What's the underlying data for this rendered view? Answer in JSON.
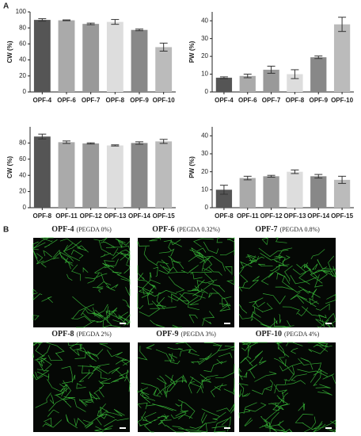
{
  "panels": {
    "a": "A",
    "b": "B"
  },
  "chart_data": [
    {
      "type": "bar",
      "ylabel": "CW (%)",
      "categories": [
        "OPF-4",
        "OPF-6",
        "OPF-7",
        "OPF-8",
        "OPF-9",
        "OPF-10"
      ],
      "values": [
        90,
        89.5,
        85,
        87.5,
        77.5,
        56
      ],
      "errors": [
        1.5,
        0.5,
        1,
        3,
        1,
        5
      ],
      "colors": [
        "#555555",
        "#aaaaaa",
        "#999999",
        "#dddddd",
        "#888888",
        "#bbbbbb"
      ],
      "ylim": [
        0,
        100
      ],
      "yticks": [
        0,
        20,
        40,
        60,
        80,
        100
      ]
    },
    {
      "type": "bar",
      "ylabel": "PW (%)",
      "categories": [
        "OPF-4",
        "OPF-6",
        "OPF-7",
        "OPF-8",
        "OPF-9",
        "OPF-10"
      ],
      "values": [
        8,
        9,
        12.5,
        10,
        19.5,
        38
      ],
      "errors": [
        0.5,
        1,
        2,
        2.5,
        0.7,
        4
      ],
      "colors": [
        "#555555",
        "#aaaaaa",
        "#999999",
        "#dddddd",
        "#888888",
        "#bbbbbb"
      ],
      "ylim": [
        0,
        45
      ],
      "yticks": [
        0,
        10,
        20,
        30,
        40
      ]
    },
    {
      "type": "bar",
      "ylabel": "CW (%)",
      "categories": [
        "OPF-8",
        "OPF-11",
        "OPF-12",
        "OPF-13",
        "OPF-14",
        "OPF-15"
      ],
      "values": [
        88,
        81,
        79.5,
        77,
        80,
        82
      ],
      "errors": [
        3,
        1.5,
        0.7,
        0.7,
        1.5,
        2.5
      ],
      "colors": [
        "#555555",
        "#aaaaaa",
        "#999999",
        "#dddddd",
        "#888888",
        "#bbbbbb"
      ],
      "ylim": [
        0,
        100
      ],
      "yticks": [
        0,
        20,
        40,
        60,
        80
      ]
    },
    {
      "type": "bar",
      "ylabel": "PW (%)",
      "categories": [
        "OPF-8",
        "OPF-11",
        "OPF-12",
        "OPF-13",
        "OPF-14",
        "OPF-15"
      ],
      "values": [
        10,
        16.5,
        17.5,
        20,
        17.5,
        15.5
      ],
      "errors": [
        2.5,
        1,
        0.5,
        1,
        1,
        2
      ],
      "colors": [
        "#555555",
        "#aaaaaa",
        "#999999",
        "#dddddd",
        "#888888",
        "#bbbbbb"
      ],
      "ylim": [
        0,
        45
      ],
      "yticks": [
        0,
        10,
        20,
        30,
        40
      ]
    }
  ],
  "images": [
    {
      "name": "OPF-4",
      "detail": "(PEGDA 0%)"
    },
    {
      "name": "OPF-6",
      "detail": "(PEGDA 0.32%)"
    },
    {
      "name": "OPF-7",
      "detail": "(PEGDA 0.8%)"
    },
    {
      "name": "OPF-8",
      "detail": "(PEGDA 2%)"
    },
    {
      "name": "OPF-9",
      "detail": "(PEGDA 3%)"
    },
    {
      "name": "OPF-10",
      "detail": "(PEGDA 4%)"
    }
  ]
}
